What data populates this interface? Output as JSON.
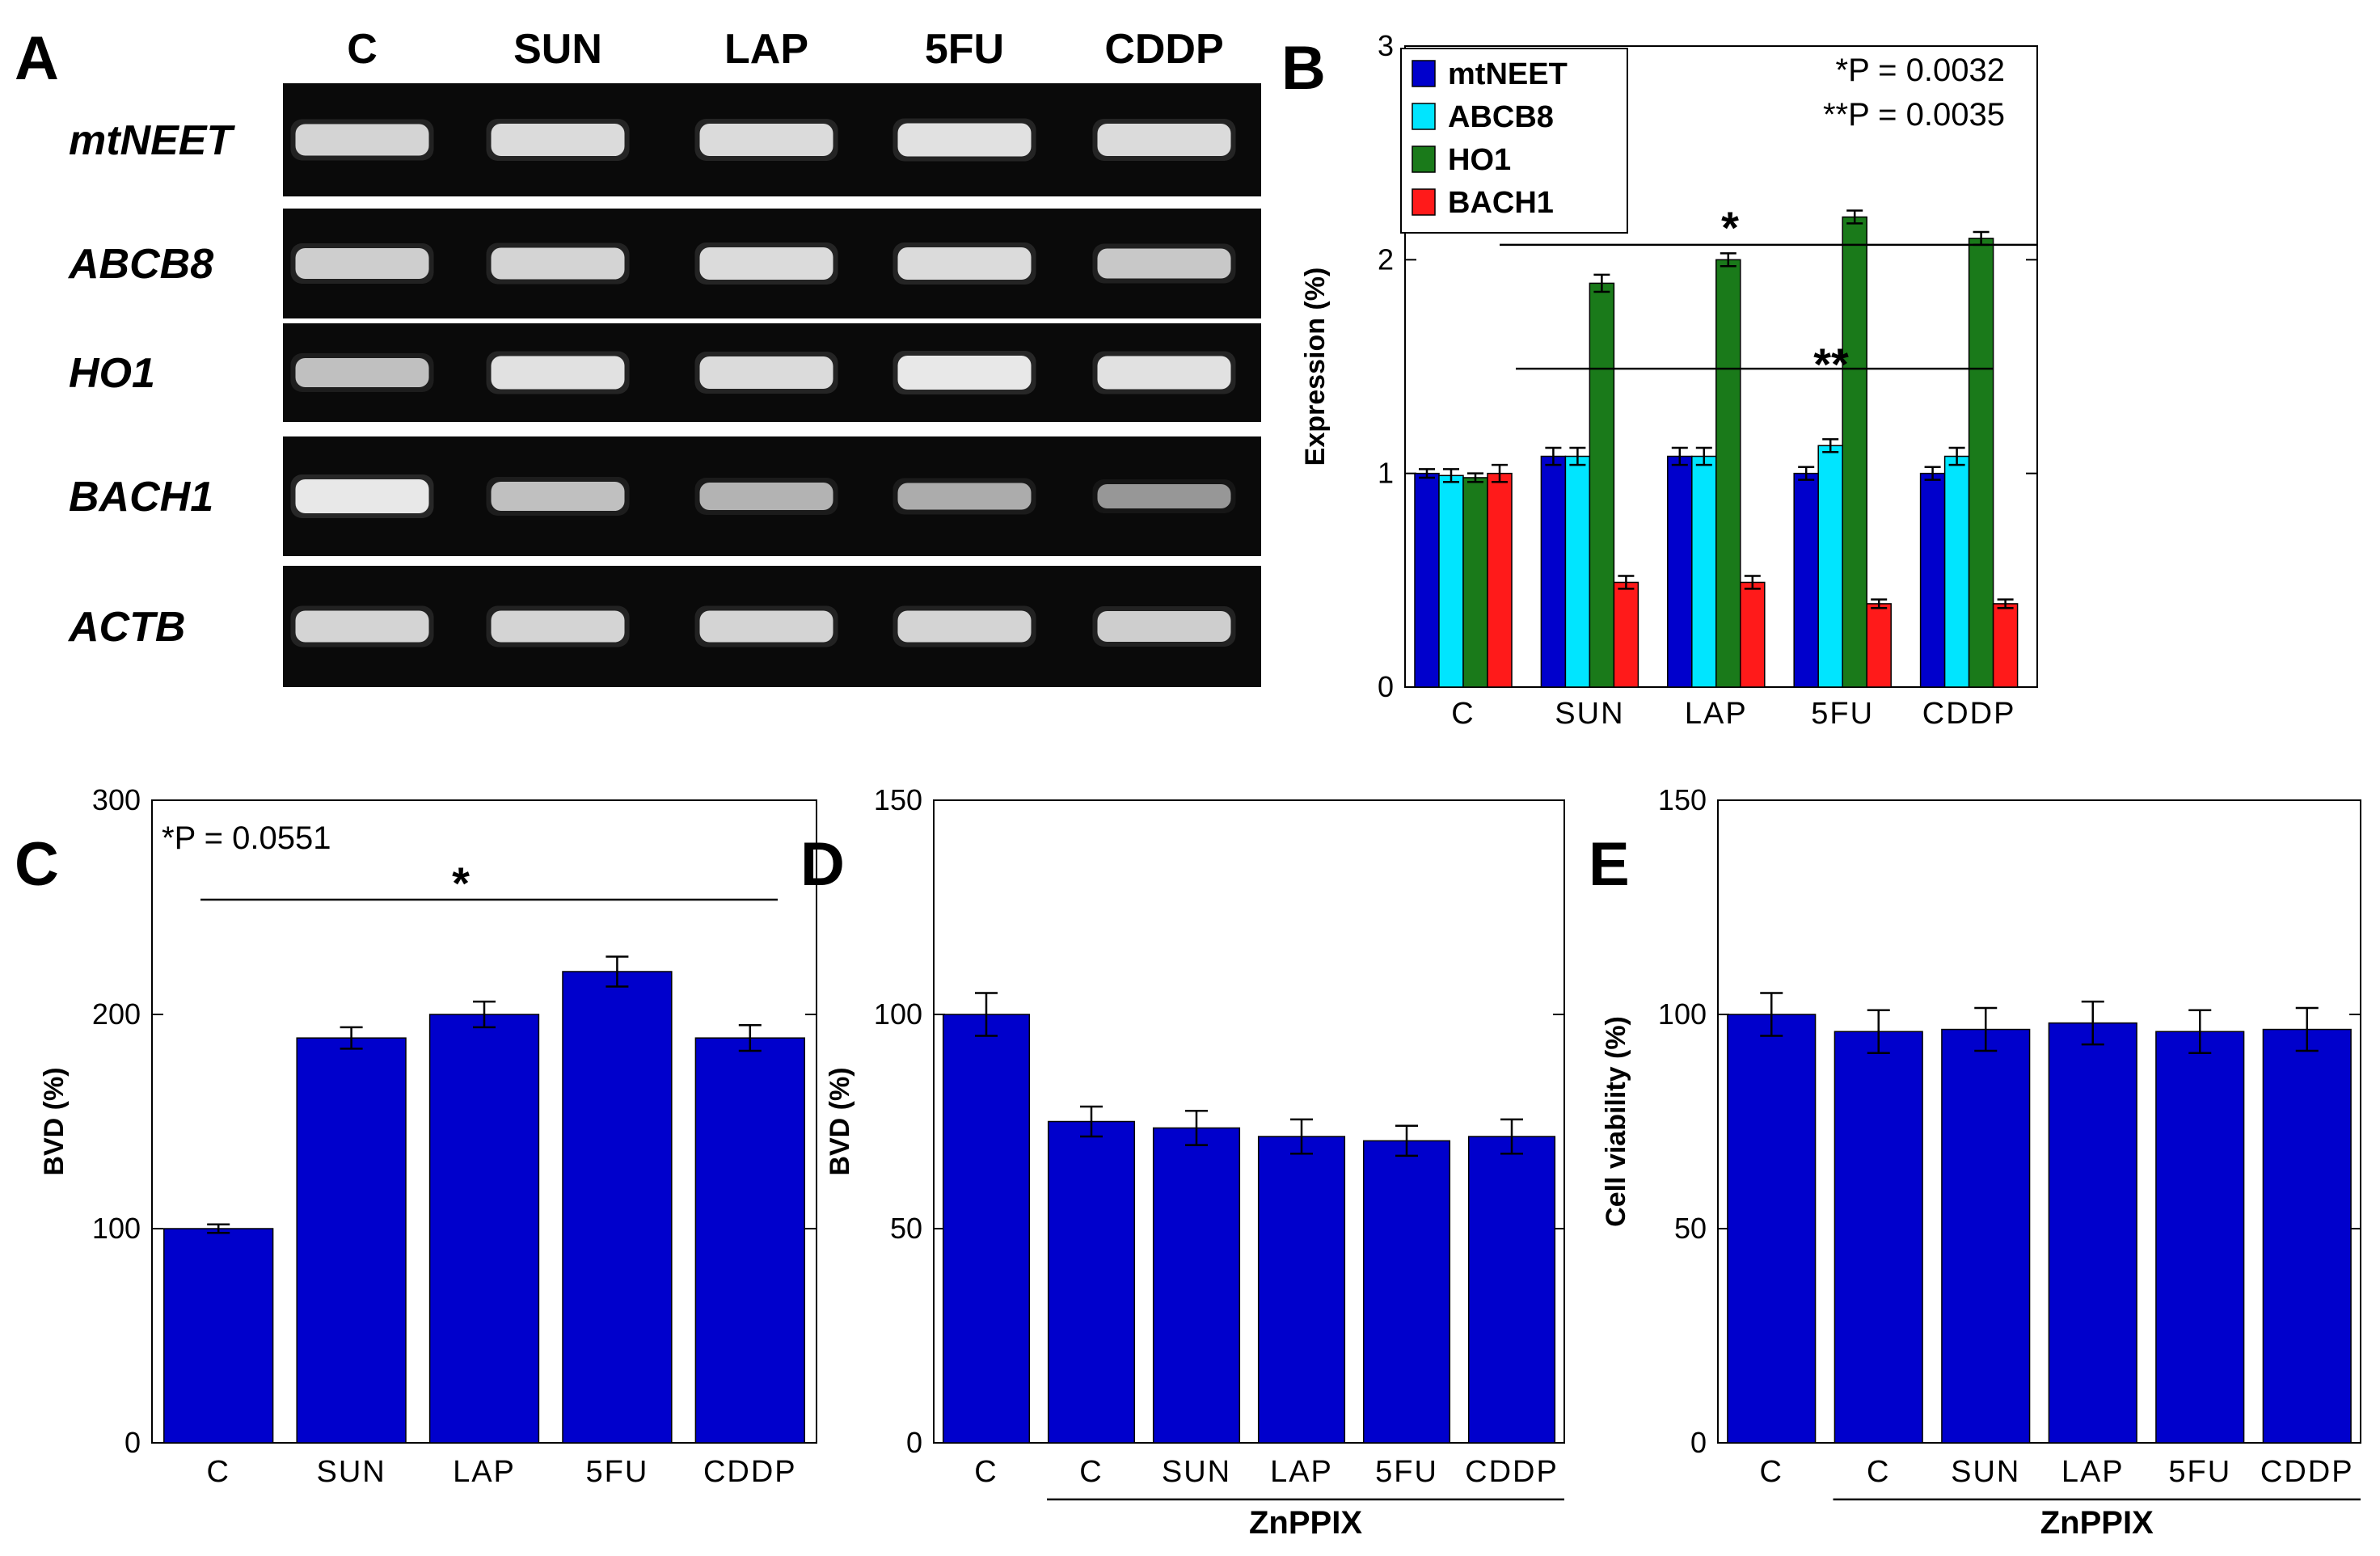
{
  "panels": {
    "A": "A",
    "B": "B",
    "C": "C",
    "D": "D",
    "E": "E"
  },
  "gel": {
    "columns": [
      "C",
      "SUN",
      "LAP",
      "5FU",
      "CDDP"
    ],
    "rows": [
      "mtNEET",
      "ABCB8",
      "HO1",
      "BACH1",
      "ACTB"
    ],
    "band_intensity": [
      [
        0.85,
        0.9,
        0.9,
        0.95,
        0.9
      ],
      [
        0.8,
        0.85,
        0.9,
        0.9,
        0.75
      ],
      [
        0.7,
        0.95,
        0.9,
        1.0,
        0.95
      ],
      [
        1.0,
        0.7,
        0.6,
        0.55,
        0.4
      ],
      [
        0.85,
        0.85,
        0.85,
        0.85,
        0.8
      ]
    ]
  },
  "chart_data": [
    {
      "id": "B",
      "type": "bar",
      "categories": [
        "C",
        "SUN",
        "LAP",
        "5FU",
        "CDDP"
      ],
      "series": [
        {
          "name": "mtNEET",
          "color": "#0000cc",
          "values": [
            1.0,
            1.08,
            1.08,
            1.0,
            1.0
          ],
          "errors": [
            0.02,
            0.04,
            0.04,
            0.03,
            0.03
          ]
        },
        {
          "name": "ABCB8",
          "color": "#00e5ff",
          "values": [
            0.99,
            1.08,
            1.08,
            1.13,
            1.08
          ],
          "errors": [
            0.03,
            0.04,
            0.04,
            0.03,
            0.04
          ]
        },
        {
          "name": "HO1",
          "color": "#1a7a1a",
          "values": [
            0.98,
            1.89,
            2.0,
            2.2,
            2.1
          ],
          "errors": [
            0.02,
            0.04,
            0.03,
            0.03,
            0.03
          ]
        },
        {
          "name": "BACH1",
          "color": "#ff1a1a",
          "values": [
            1.0,
            0.49,
            0.49,
            0.39,
            0.39
          ],
          "errors": [
            0.04,
            0.03,
            0.03,
            0.02,
            0.02
          ]
        }
      ],
      "ylabel": "Expression (%)",
      "ylim": [
        0,
        3
      ],
      "yticks": [
        0,
        1,
        2,
        3
      ],
      "legend": "top-left",
      "annotations": [
        "*P = 0.0032",
        "**P = 0.0035"
      ],
      "significance": [
        {
          "from": "C",
          "to": "CDDP",
          "label": "*",
          "y": 2.1
        },
        {
          "from": "SUN",
          "to": "CDDP",
          "label": "**",
          "y": 1.49
        }
      ]
    },
    {
      "id": "C",
      "type": "bar",
      "categories": [
        "C",
        "SUN",
        "LAP",
        "5FU",
        "CDDP"
      ],
      "values": [
        100,
        189,
        200,
        220,
        189
      ],
      "errors": [
        2,
        5,
        6,
        7,
        6
      ],
      "color": "#0000cc",
      "ylabel": "BVD (%)",
      "ylim": [
        0,
        300
      ],
      "yticks": [
        0,
        100,
        200,
        300
      ],
      "annotations": [
        "*P = 0.0551"
      ],
      "significance": [
        {
          "from": "C",
          "to": "CDDP",
          "label": "*",
          "y": 255
        }
      ]
    },
    {
      "id": "D",
      "type": "bar",
      "categories": [
        "C",
        "C",
        "SUN",
        "LAP",
        "5FU",
        "CDDP"
      ],
      "values": [
        100,
        75,
        73.5,
        71.5,
        70.5,
        71.5
      ],
      "errors": [
        5,
        3.5,
        4,
        4,
        3.5,
        4
      ],
      "color": "#0000cc",
      "ylabel": "BVD (%)",
      "ylim": [
        0,
        150
      ],
      "yticks": [
        0,
        50,
        100,
        150
      ],
      "group_label": "ZnPPIX"
    },
    {
      "id": "E",
      "type": "bar",
      "categories": [
        "C",
        "C",
        "SUN",
        "LAP",
        "5FU",
        "CDDP"
      ],
      "values": [
        100,
        96,
        96.5,
        98,
        96,
        96.5
      ],
      "errors": [
        5,
        5,
        5,
        5,
        5,
        5
      ],
      "color": "#0000cc",
      "ylabel": "Cell viability (%)",
      "ylim": [
        0,
        150
      ],
      "yticks": [
        0,
        50,
        100,
        150
      ],
      "group_label": "ZnPPIX"
    }
  ]
}
